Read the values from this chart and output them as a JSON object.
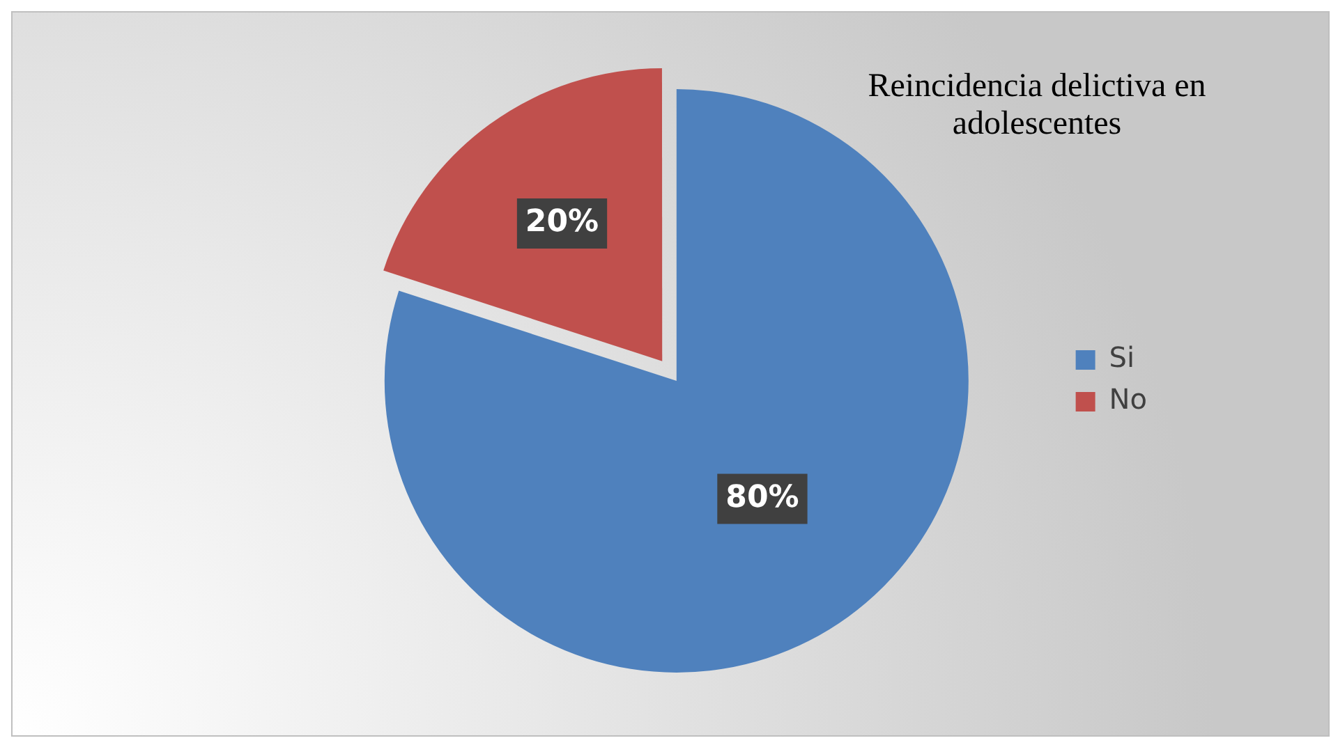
{
  "chart_data": {
    "type": "pie",
    "title": "Reincidencia delictiva en adolescentes",
    "categories": [
      "Si",
      "No"
    ],
    "values": [
      80,
      20
    ],
    "colors": [
      "#4f81bd",
      "#c0504d"
    ],
    "value_labels": [
      "80%",
      "20%"
    ],
    "legend": "right"
  }
}
